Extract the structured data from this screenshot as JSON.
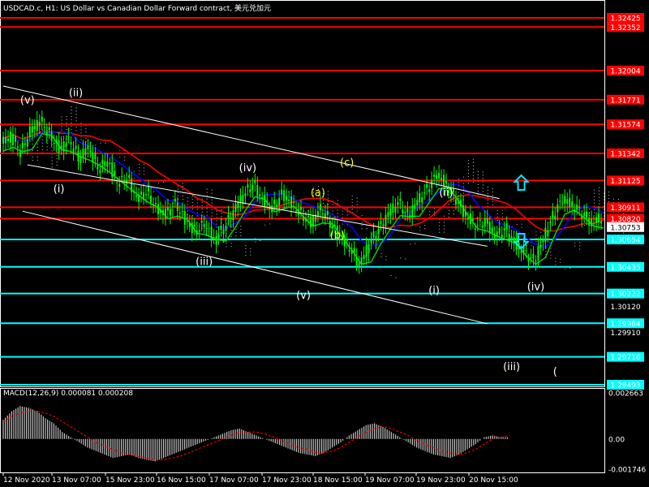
{
  "header": {
    "symbol": "USDCAD.c",
    "timeframe": "H1",
    "description": "US Dollar vs Canadian Dollar Forward contract",
    "title_text": "USDCAD.c, H1:  US Dollar vs Canadian Dollar Forward contract, 美元兑加元"
  },
  "colors": {
    "background": "#000000",
    "candles": "#00ff00",
    "resistance": "#ff0000",
    "support": "#00ffff",
    "channel": "#ffffff",
    "wave_white": "#ffffff",
    "wave_yellow": "#ffff00",
    "arrows": "#00e5ff",
    "ma_red": "#ff0000",
    "ma_blue": "#0000ff",
    "ma_green": "#00c800",
    "macd_hist": "#c0c0c0",
    "macd_signal": "#ff0000"
  },
  "chart_data": [
    {
      "type": "line",
      "title": "USDCAD.c, H1:  US Dollar vs Canadian Dollar Forward contract, 美元兑加元",
      "ylim": [
        1.29493,
        1.32425
      ],
      "y_ticks": [
        "1.32425",
        "1.32352",
        "1.32004",
        "1.31771",
        "1.31574",
        "1.31342",
        "1.31125",
        "1.30911",
        "1.30820",
        "1.30753",
        "1.30654",
        "1.30435",
        "1.30222",
        "1.30120",
        "1.29984",
        "1.29910",
        "1.29716",
        "1.29493"
      ],
      "x_ticks": [
        "12 Nov 2020",
        "13 Nov 07:00",
        "15 Nov 23:00",
        "16 Nov 15:00",
        "17 Nov 07:00",
        "17 Nov 23:00",
        "18 Nov 15:00",
        "19 Nov 07:00",
        "19 Nov 23:00",
        "20 Nov 15:00"
      ],
      "current_price": "1.30753",
      "resistance_levels": [
        {
          "label": "1.32425",
          "value": 1.32425
        },
        {
          "label": "1.32352",
          "value": 1.32352
        },
        {
          "label": "1.32004",
          "value": 1.32004
        },
        {
          "label": "1.31771",
          "value": 1.31771
        },
        {
          "label": "1.31574",
          "value": 1.31574
        },
        {
          "label": "1.31342",
          "value": 1.31342
        },
        {
          "label": "1.31125",
          "value": 1.31125
        },
        {
          "label": "1.30911",
          "value": 1.30911
        },
        {
          "label": "1.30820",
          "value": 1.3082
        }
      ],
      "support_levels": [
        {
          "label": "1.30654",
          "value": 1.30654
        },
        {
          "label": "1.30435",
          "value": 1.30435
        },
        {
          "label": "1.30222",
          "value": 1.30222
        },
        {
          "label": "1.29984",
          "value": 1.29984
        },
        {
          "label": "1.29716",
          "value": 1.29716
        },
        {
          "label": "1.29493",
          "value": 1.29493
        }
      ],
      "plain_ticks": [
        "1.30120",
        "1.29910"
      ],
      "price_path": [
        [
          0,
          1.3142
        ],
        [
          4,
          1.3148
        ],
        [
          8,
          1.3135
        ],
        [
          12,
          1.3152
        ],
        [
          16,
          1.316
        ],
        [
          20,
          1.3149
        ],
        [
          24,
          1.3138
        ],
        [
          28,
          1.3145
        ],
        [
          32,
          1.313
        ],
        [
          36,
          1.3139
        ],
        [
          40,
          1.3122
        ],
        [
          44,
          1.3128
        ],
        [
          48,
          1.311
        ],
        [
          52,
          1.3115
        ],
        [
          56,
          1.3098
        ],
        [
          60,
          1.3104
        ],
        [
          64,
          1.309
        ],
        [
          68,
          1.3086
        ],
        [
          72,
          1.3094
        ],
        [
          76,
          1.3081
        ],
        [
          80,
          1.3072
        ],
        [
          84,
          1.3078
        ],
        [
          88,
          1.3065
        ],
        [
          92,
          1.3075
        ],
        [
          96,
          1.3088
        ],
        [
          100,
          1.3101
        ],
        [
          104,
          1.311
        ],
        [
          108,
          1.3097
        ],
        [
          112,
          1.309
        ],
        [
          116,
          1.3102
        ],
        [
          120,
          1.3094
        ],
        [
          124,
          1.3085
        ],
        [
          128,
          1.3079
        ],
        [
          132,
          1.309
        ],
        [
          136,
          1.3078
        ],
        [
          140,
          1.3068
        ],
        [
          144,
          1.3058
        ],
        [
          148,
          1.3045
        ],
        [
          152,
          1.3062
        ],
        [
          156,
          1.3074
        ],
        [
          160,
          1.3086
        ],
        [
          164,
          1.3095
        ],
        [
          168,
          1.3084
        ],
        [
          172,
          1.3096
        ],
        [
          176,
          1.3106
        ],
        [
          180,
          1.3118
        ],
        [
          184,
          1.3108
        ],
        [
          188,
          1.3097
        ],
        [
          192,
          1.3084
        ],
        [
          196,
          1.3076
        ],
        [
          200,
          1.308
        ],
        [
          204,
          1.3068
        ],
        [
          208,
          1.3074
        ],
        [
          212,
          1.3062
        ],
        [
          216,
          1.3055
        ],
        [
          220,
          1.3048
        ],
        [
          224,
          1.3066
        ],
        [
          228,
          1.3085
        ],
        [
          232,
          1.3098
        ],
        [
          236,
          1.3092
        ],
        [
          240,
          1.3086
        ],
        [
          244,
          1.3078
        ],
        [
          248,
          1.3083
        ]
      ],
      "waves": [
        {
          "label": "(v)",
          "color": "white",
          "x": 10,
          "y": 1.3174
        },
        {
          "label": "(ii)",
          "color": "white",
          "x": 30,
          "y": 1.318
        },
        {
          "label": "(i)",
          "color": "white",
          "x": 23,
          "y": 1.3103
        },
        {
          "label": "(iv)",
          "color": "white",
          "x": 101,
          "y": 1.312
        },
        {
          "label": "(iii)",
          "color": "white",
          "x": 83,
          "y": 1.3045
        },
        {
          "label": "(v)",
          "color": "white",
          "x": 124,
          "y": 1.3018
        },
        {
          "label": "(a)",
          "color": "yellow",
          "x": 130,
          "y": 1.31
        },
        {
          "label": "(b)",
          "color": "yellow",
          "x": 138,
          "y": 1.3066
        },
        {
          "label": "(c)",
          "color": "yellow",
          "x": 142,
          "y": 1.3124
        },
        {
          "label": "(ii)",
          "color": "white",
          "x": 183,
          "y": 1.31
        },
        {
          "label": "(i)",
          "color": "white",
          "x": 178,
          "y": 1.3022
        },
        {
          "label": "(iv)",
          "color": "white",
          "x": 220,
          "y": 1.3025
        },
        {
          "label": "(iii)",
          "color": "white",
          "x": 210,
          "y": 1.2961
        },
        {
          "label": "(",
          "color": "white",
          "x": 228,
          "y": 1.2957
        }
      ],
      "channel_upper": [
        [
          0,
          1.3188
        ],
        [
          205,
          1.3098
        ]
      ],
      "channel_lower": [
        [
          8,
          1.3088
        ],
        [
          200,
          1.2998
        ]
      ],
      "channel_mid": [
        [
          10,
          1.3125
        ],
        [
          200,
          1.306
        ]
      ]
    },
    {
      "type": "bar",
      "title": "MACD(12,26,9) 0.000081 0.000208",
      "name": "MACD(12,26,9)",
      "macd_value": "0.000081",
      "signal_value": "0.000208",
      "ylim": [
        -0.001746,
        0.002663
      ],
      "y_ticks": [
        "0.002663",
        "0.00",
        "-0.001746"
      ],
      "histogram": [
        0.0011,
        0.0016,
        0.0019,
        0.0018,
        0.0016,
        0.0012,
        0.0009,
        0.0004,
        0.0001,
        -0.0002,
        -0.0005,
        -0.0007,
        -0.0009,
        -0.0011,
        -0.001,
        -0.0009,
        -0.0011,
        -0.0012,
        -0.0013,
        -0.0011,
        -0.0009,
        -0.0007,
        -0.0005,
        -0.0003,
        -0.0001,
        0.0001,
        0.0003,
        0.0005,
        0.0006,
        0.0004,
        0.0002,
        0.0,
        -0.0002,
        -0.0004,
        -0.0006,
        -0.0008,
        -0.0009,
        -0.001,
        -0.0008,
        -0.0005,
        -0.0002,
        0.0002,
        0.0005,
        0.0008,
        0.0009,
        0.0007,
        0.0004,
        0.0001,
        -0.0002,
        -0.0005,
        -0.0007,
        -0.0009,
        -0.001,
        -0.0011,
        -0.0009,
        -0.0006,
        -0.0003,
        0.0001,
        0.0002,
        0.0001,
        0.0001
      ],
      "signal": [
        0.001,
        0.0013,
        0.0015,
        0.0016,
        0.0016,
        0.0015,
        0.0013,
        0.001,
        0.0007,
        0.0004,
        0.0001,
        -0.0002,
        -0.0004,
        -0.0006,
        -0.0008,
        -0.0009,
        -0.001,
        -0.0011,
        -0.0012,
        -0.0012,
        -0.0011,
        -0.001,
        -0.0008,
        -0.0006,
        -0.0004,
        -0.0002,
        0.0,
        0.0002,
        0.0004,
        0.0004,
        0.0004,
        0.0003,
        0.0001,
        -0.0001,
        -0.0003,
        -0.0005,
        -0.0006,
        -0.0008,
        -0.0008,
        -0.0007,
        -0.0005,
        -0.0002,
        0.0001,
        0.0004,
        0.0006,
        0.0007,
        0.0006,
        0.0004,
        0.0002,
        -0.0001,
        -0.0003,
        -0.0005,
        -0.0007,
        -0.0008,
        -0.0009,
        -0.0008,
        -0.0006,
        -0.0003,
        0.0,
        0.0001,
        0.0002
      ]
    }
  ]
}
